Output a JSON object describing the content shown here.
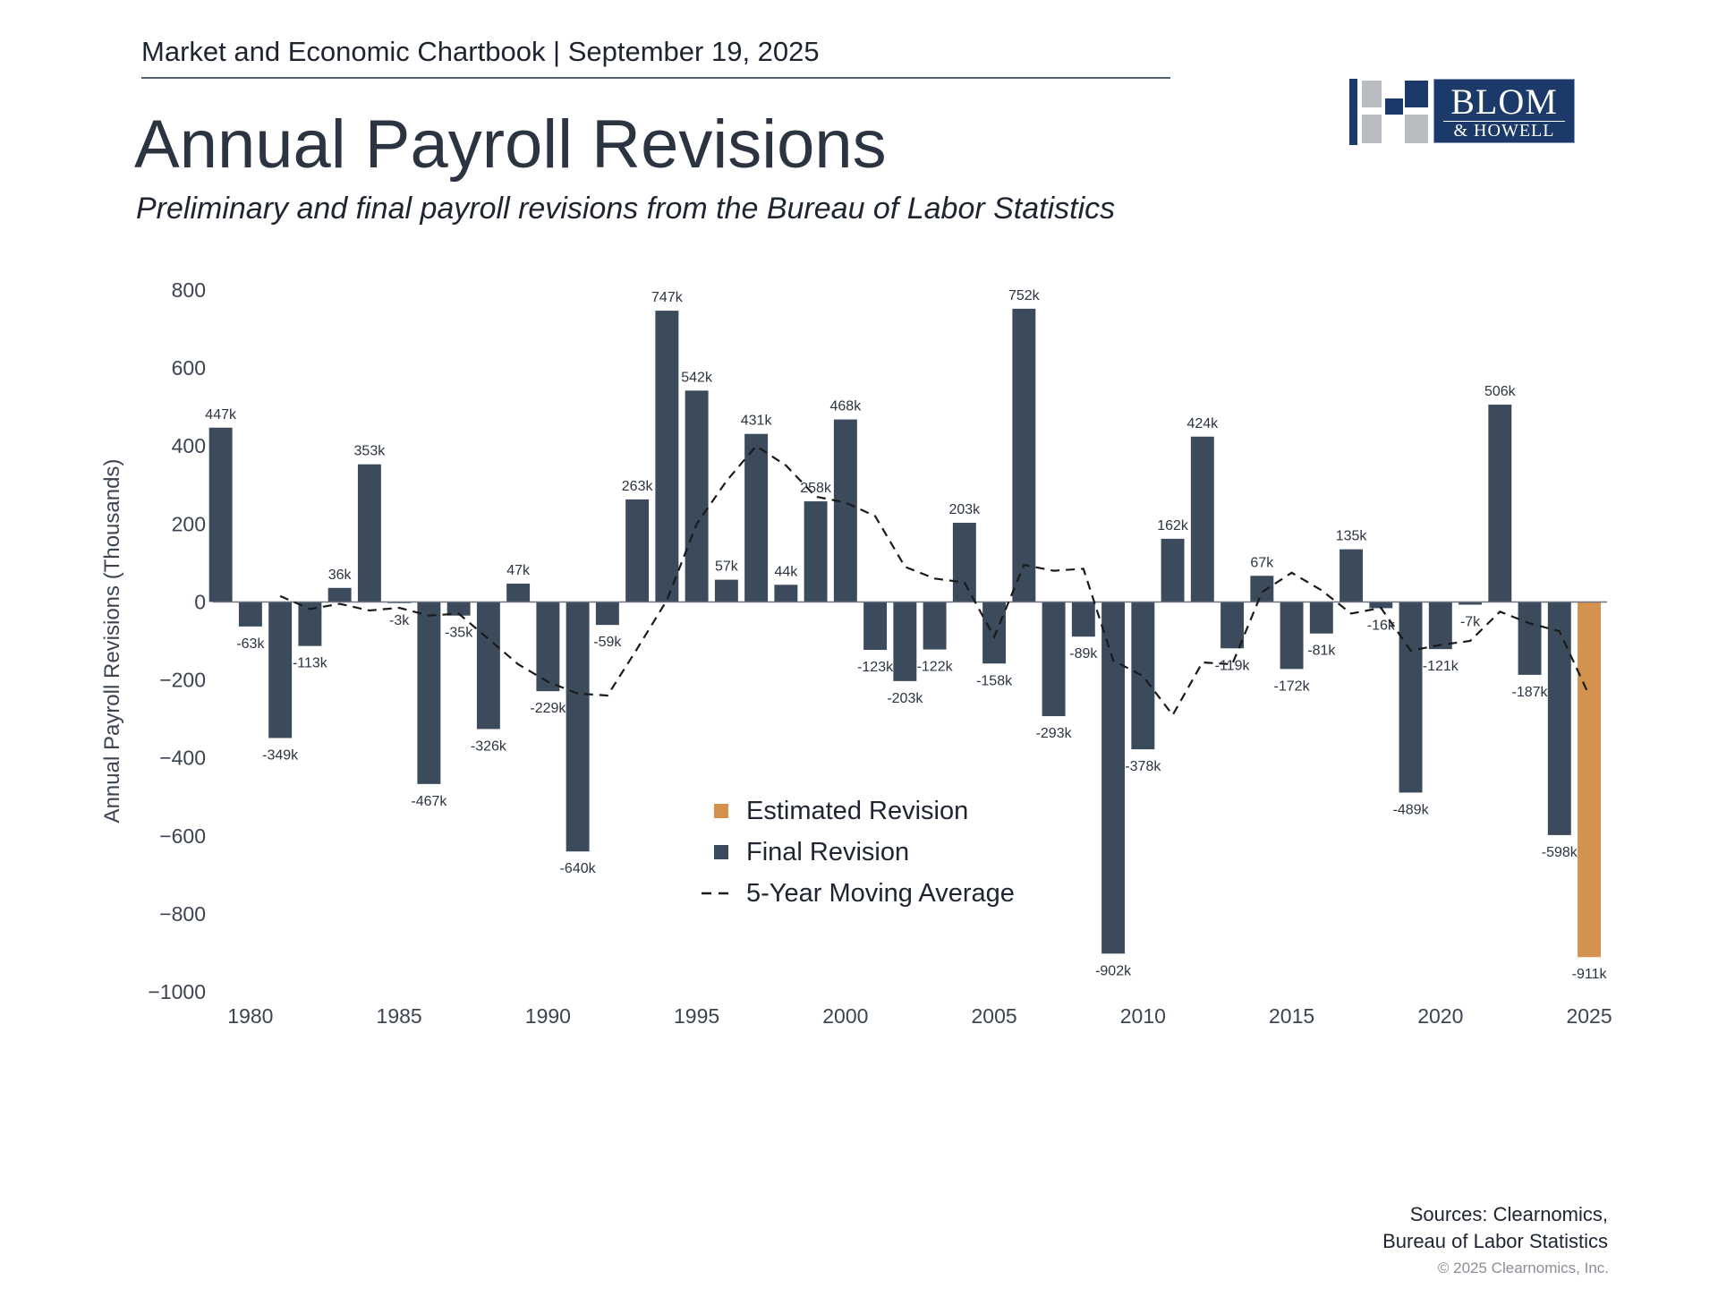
{
  "header": {
    "chartbook": "Market and Economic Chartbook | September 19, 2025",
    "logo_text_1": "BLOM",
    "logo_text_2": "& HOWELL"
  },
  "footer": {
    "sources_line1": "Sources: Clearnomics,",
    "sources_line2": "Bureau of Labor Statistics",
    "copyright": "© 2025 Clearnomics, Inc."
  },
  "colors": {
    "final": "#3b4b5c",
    "estimated": "#d4924f",
    "average": "#1a1a1a",
    "axis_text": "#3b4450"
  },
  "chart_data": {
    "type": "bar",
    "title": "Annual Payroll Revisions",
    "subtitle": "Preliminary and final payroll revisions from the Bureau of Labor Statistics",
    "ylabel": "Annual Payroll Revisions (Thousands)",
    "xlabel": "",
    "ylim": [
      -1000,
      800
    ],
    "yticks": [
      800,
      600,
      400,
      200,
      0,
      -200,
      -400,
      -600,
      -800,
      -1000
    ],
    "ytick_labels": [
      "800",
      "600",
      "400",
      "200",
      "0",
      "−200",
      "−400",
      "−600",
      "−800",
      "−1000"
    ],
    "xticks": [
      1980,
      1985,
      1990,
      1995,
      2000,
      2005,
      2010,
      2015,
      2020,
      2025
    ],
    "xtick_labels": [
      "1980",
      "1985",
      "1990",
      "1995",
      "2000",
      "2005",
      "2010",
      "2015",
      "2020",
      "2025"
    ],
    "grid": false,
    "legend": {
      "placement": "bottom-center",
      "entries": [
        "Estimated Revision",
        "Final Revision",
        "5-Year Moving Average"
      ]
    },
    "series": [
      {
        "name": "Final Revision",
        "kind": "bar",
        "x": [
          1979,
          1980,
          1981,
          1982,
          1983,
          1984,
          1985,
          1986,
          1987,
          1988,
          1989,
          1990,
          1991,
          1992,
          1993,
          1994,
          1995,
          1996,
          1997,
          1998,
          1999,
          2000,
          2001,
          2002,
          2003,
          2004,
          2005,
          2006,
          2007,
          2008,
          2009,
          2010,
          2011,
          2012,
          2013,
          2014,
          2015,
          2016,
          2017,
          2018,
          2019,
          2020,
          2021,
          2022,
          2023,
          2024
        ],
        "values": [
          447,
          -63,
          -349,
          -113,
          36,
          353,
          -3,
          -467,
          -35,
          -326,
          47,
          -229,
          -640,
          -59,
          263,
          747,
          542,
          57,
          431,
          44,
          258,
          468,
          -123,
          -203,
          -122,
          203,
          -158,
          752,
          -293,
          -89,
          -902,
          -378,
          162,
          424,
          -119,
          67,
          -172,
          -81,
          135,
          -16,
          -489,
          -121,
          -7,
          506,
          -187,
          -598
        ],
        "labels": [
          "447k",
          "-63k",
          "-349k",
          "-113k",
          "36k",
          "353k",
          "-3k",
          "-467k",
          "-35k",
          "-326k",
          "47k",
          "-229k",
          "-640k",
          "-59k",
          "263k",
          "747k",
          "542k",
          "57k",
          "431k",
          "44k",
          "258k",
          "468k",
          "-123k",
          "-203k",
          "-122k",
          "203k",
          "-158k",
          "752k",
          "-293k",
          "-89k",
          "-902k",
          "-378k",
          "162k",
          "424k",
          "-119k",
          "67k",
          "-172k",
          "-81k",
          "135k",
          "-16k",
          "-489k",
          "-121k",
          "-7k",
          "506k",
          "-187k",
          "-598k"
        ]
      },
      {
        "name": "Estimated Revision",
        "kind": "bar",
        "x": [
          2025
        ],
        "values": [
          -911
        ],
        "labels": [
          "-911k"
        ]
      },
      {
        "name": "5-Year Moving Average",
        "kind": "line",
        "x": [
          1980,
          1981,
          1982,
          1983,
          1984,
          1985,
          1986,
          1987,
          1988,
          1989,
          1990,
          1991,
          1992,
          1993,
          1994,
          1995,
          1996,
          1997,
          1998,
          1999,
          2000,
          2001,
          2002,
          2003,
          2004,
          2005,
          2006,
          2007,
          2008,
          2009,
          2010,
          2011,
          2012,
          2013,
          2014,
          2015,
          2016,
          2017,
          2018,
          2019,
          2020,
          2021,
          2022,
          2023,
          2024,
          2025
        ],
        "values": [
          null,
          15,
          -18,
          -5,
          -22,
          -15,
          -35,
          -30,
          -95,
          -160,
          -205,
          -235,
          -240,
          -120,
          5,
          200,
          310,
          400,
          350,
          270,
          255,
          220,
          90,
          60,
          50,
          -90,
          95,
          80,
          85,
          -150,
          -190,
          -290,
          -155,
          -160,
          25,
          75,
          30,
          -30,
          -15,
          -125,
          -110,
          -100,
          -25,
          -55,
          -75,
          -240
        ]
      }
    ]
  }
}
